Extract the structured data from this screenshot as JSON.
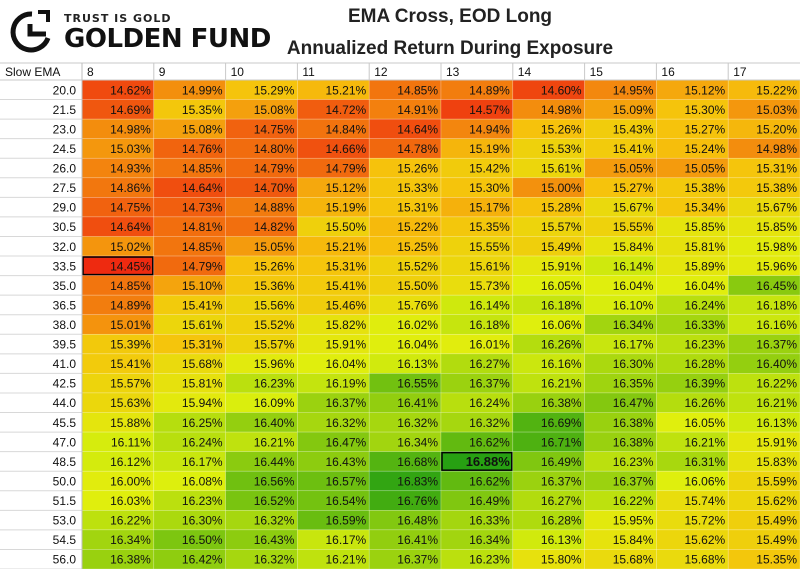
{
  "brand": {
    "tagline": "TRUST IS GOLD",
    "name": "GOLDEN FUND",
    "logo_icon": "golden-fund-logo-icon"
  },
  "chart_data": {
    "type": "heatmap",
    "title": "EMA Cross, EOD Long",
    "subtitle": "Annualized Return During Exposure",
    "row_header": "Slow EMA",
    "columns": [
      "8",
      "9",
      "10",
      "11",
      "12",
      "13",
      "14",
      "15",
      "16",
      "17"
    ],
    "rows": [
      "20.0",
      "21.5",
      "23.0",
      "24.5",
      "26.0",
      "27.5",
      "29.0",
      "30.5",
      "32.0",
      "33.5",
      "35.0",
      "36.5",
      "38.0",
      "39.5",
      "41.0",
      "42.5",
      "44.0",
      "45.5",
      "47.0",
      "48.5",
      "50.0",
      "51.5",
      "53.0",
      "54.5",
      "56.0"
    ],
    "values": [
      [
        14.62,
        14.99,
        15.29,
        15.21,
        14.85,
        14.89,
        14.6,
        14.95,
        15.12,
        15.22
      ],
      [
        14.69,
        15.35,
        15.08,
        14.72,
        14.91,
        14.57,
        14.98,
        15.09,
        15.3,
        15.03
      ],
      [
        14.98,
        15.08,
        14.75,
        14.84,
        14.64,
        14.94,
        15.26,
        15.43,
        15.27,
        15.2
      ],
      [
        15.03,
        14.76,
        14.8,
        14.66,
        14.78,
        15.19,
        15.53,
        15.41,
        15.24,
        14.98
      ],
      [
        14.93,
        14.85,
        14.79,
        14.79,
        15.26,
        15.42,
        15.61,
        15.05,
        15.05,
        15.31
      ],
      [
        14.86,
        14.64,
        14.7,
        15.12,
        15.33,
        15.3,
        15.0,
        15.27,
        15.38,
        15.38
      ],
      [
        14.75,
        14.73,
        14.88,
        15.19,
        15.31,
        15.17,
        15.28,
        15.67,
        15.34,
        15.67
      ],
      [
        14.64,
        14.81,
        14.82,
        15.5,
        15.22,
        15.35,
        15.57,
        15.55,
        15.85,
        15.85
      ],
      [
        15.02,
        14.85,
        15.05,
        15.21,
        15.25,
        15.55,
        15.49,
        15.84,
        15.81,
        15.98
      ],
      [
        14.45,
        14.79,
        15.26,
        15.31,
        15.52,
        15.61,
        15.91,
        16.14,
        15.89,
        15.96
      ],
      [
        14.85,
        15.1,
        15.36,
        15.41,
        15.5,
        15.73,
        16.05,
        16.04,
        16.04,
        16.45
      ],
      [
        14.89,
        15.41,
        15.56,
        15.46,
        15.76,
        16.14,
        16.18,
        16.1,
        16.24,
        16.18
      ],
      [
        15.01,
        15.61,
        15.52,
        15.82,
        16.02,
        16.18,
        16.06,
        16.34,
        16.33,
        16.16
      ],
      [
        15.39,
        15.31,
        15.57,
        15.91,
        16.04,
        16.01,
        16.26,
        16.17,
        16.23,
        16.37
      ],
      [
        15.41,
        15.68,
        15.96,
        16.04,
        16.13,
        16.27,
        16.16,
        16.3,
        16.28,
        16.4
      ],
      [
        15.57,
        15.81,
        16.23,
        16.19,
        16.55,
        16.37,
        16.21,
        16.35,
        16.39,
        16.22
      ],
      [
        15.63,
        15.94,
        16.09,
        16.37,
        16.41,
        16.24,
        16.38,
        16.47,
        16.26,
        16.21
      ],
      [
        15.88,
        16.25,
        16.4,
        16.32,
        16.32,
        16.32,
        16.69,
        16.38,
        16.05,
        16.13
      ],
      [
        16.11,
        16.24,
        16.21,
        16.47,
        16.34,
        16.62,
        16.71,
        16.38,
        16.21,
        15.91
      ],
      [
        16.12,
        16.17,
        16.44,
        16.43,
        16.68,
        16.88,
        16.49,
        16.23,
        16.31,
        15.83
      ],
      [
        16.0,
        16.08,
        16.56,
        16.57,
        16.83,
        16.62,
        16.37,
        16.37,
        16.06,
        15.59
      ],
      [
        16.03,
        16.23,
        16.52,
        16.54,
        16.76,
        16.49,
        16.27,
        16.22,
        15.74,
        15.62
      ],
      [
        16.22,
        16.3,
        16.32,
        16.59,
        16.48,
        16.33,
        16.28,
        15.95,
        15.72,
        15.49
      ],
      [
        16.34,
        16.5,
        16.43,
        16.17,
        16.41,
        16.34,
        16.13,
        15.84,
        15.62,
        15.49
      ],
      [
        16.38,
        16.42,
        16.32,
        16.21,
        16.37,
        16.23,
        15.8,
        15.68,
        15.68,
        15.35
      ]
    ],
    "value_suffix": "%",
    "min_value": 14.45,
    "max_value": 16.88,
    "highlight_min": {
      "row": "33.5",
      "col": "8"
    },
    "highlight_max": {
      "row": "48.5",
      "col": "13"
    },
    "color_scale": [
      "#ee2a10",
      "#f6c20c",
      "#dff00d",
      "#27a012"
    ]
  }
}
